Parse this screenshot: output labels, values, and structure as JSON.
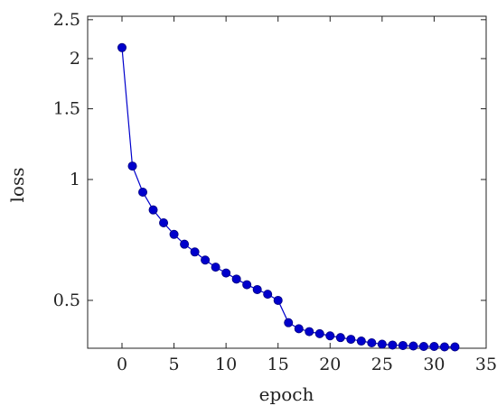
{
  "chart_data": {
    "type": "line",
    "xlabel": "epoch",
    "ylabel": "loss",
    "xlim": [
      -3.3,
      35
    ],
    "ylim": [
      0.38,
      2.55
    ],
    "x_ticks": [
      0,
      5,
      10,
      15,
      20,
      25,
      30,
      35
    ],
    "y_ticks": [
      0.5,
      1,
      1.5,
      2,
      2.5
    ],
    "x_tick_labels": [
      "0",
      "5",
      "10",
      "15",
      "20",
      "25",
      "30",
      "35"
    ],
    "y_tick_labels": [
      "0.5",
      "1",
      "1.5",
      "2",
      "2.5"
    ],
    "grid": false,
    "series": [
      {
        "color": "#0000cc",
        "marker": "circle",
        "x": [
          0,
          1,
          2,
          3,
          4,
          5,
          6,
          7,
          8,
          9,
          10,
          11,
          12,
          13,
          14,
          15,
          16,
          17,
          18,
          19,
          20,
          21,
          22,
          23,
          24,
          25,
          26,
          27,
          28,
          29,
          30,
          31,
          32
        ],
        "y": [
          2.13,
          1.08,
          0.93,
          0.84,
          0.78,
          0.73,
          0.69,
          0.66,
          0.63,
          0.605,
          0.585,
          0.565,
          0.547,
          0.532,
          0.518,
          0.5,
          0.44,
          0.425,
          0.418,
          0.413,
          0.408,
          0.404,
          0.4,
          0.396,
          0.392,
          0.389,
          0.387,
          0.386,
          0.385,
          0.384,
          0.384,
          0.383,
          0.383
        ]
      }
    ]
  }
}
